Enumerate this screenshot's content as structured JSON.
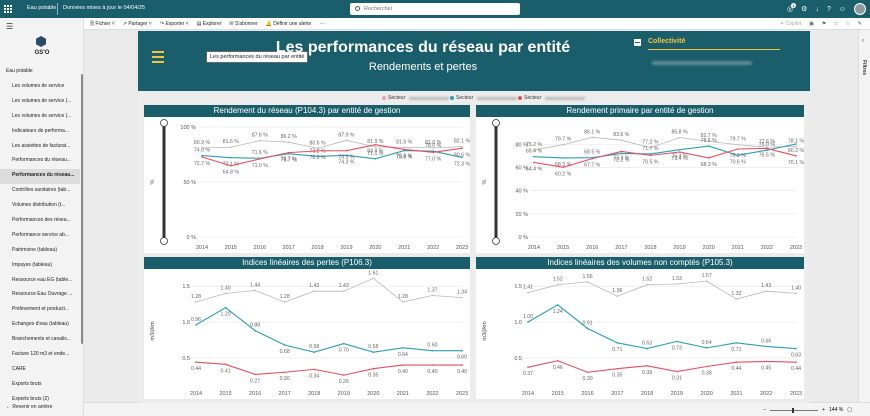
{
  "topbar": {
    "app_name": "Eau potable",
    "dataset_info": "Données mises à jour le 04/04/25",
    "search_placeholder": "Rechercher",
    "notif_count": "1"
  },
  "toolbar": {
    "file": "Fichier",
    "share": "Partager",
    "export": "Exporter",
    "explore": "Explorer",
    "subscribe": "S'abonner",
    "alert": "Définir une alerte",
    "more": "···",
    "copilot": "Copilot"
  },
  "sidebar": {
    "org": "GS'O",
    "group": "Eau potable",
    "items": [
      "Les volumes de service",
      "Les volumes de service (...",
      "Les volumes de service (...",
      "Indicateurs de performa...",
      "Les assiettes de facturat...",
      "Performances du réseau...",
      "Performances du réseau...",
      "Contrôles sanitaires (tab...",
      "Volumes distribution (t...",
      "Performances des résea...",
      "Performance service ab...",
      "Patrimoine (tableau)",
      "Impayes (tableau)",
      "Ressource eau EG (table...",
      "Ressource Eau Ouvrage ...",
      "Prélèvement et producti...",
      "Echanges d'eau (tableau)",
      "Branchements et canalis...",
      "Facture 120 m3 et ende...",
      "CARE",
      "Exports bruts",
      "Exports bruts (2)"
    ],
    "back": "Revenir en arrière"
  },
  "rightpane": {
    "label": "Filtres"
  },
  "status": {
    "zoom": "144 %"
  },
  "report": {
    "title": "Les performances du réseau par entité",
    "subtitle": "Rendements et pertes",
    "tooltip": "Les performances du réseau par entité",
    "slicer_label": "Collectivité",
    "legend": [
      {
        "label": "Secteur",
        "color": "#e8a0b4"
      },
      {
        "label": "Secteur",
        "color": "#2e9db0"
      },
      {
        "label": "Secteur",
        "color": "#e05060"
      }
    ]
  },
  "colors": {
    "series_a": "#b8b8b8",
    "series_b": "#2e9db0",
    "series_c": "#e05060"
  },
  "chart_data": [
    {
      "type": "line",
      "title": "Rendement du réseau (P104.3) par entité de gestion",
      "ylabel": "%",
      "yticks": [
        "100 %",
        "50 %",
        "0 %"
      ],
      "ylim": [
        0,
        100
      ],
      "slider": true,
      "x": [
        "2014",
        "2015",
        "2016",
        "2017",
        "2018",
        "2019",
        "2020",
        "2021",
        "2022",
        "2023"
      ],
      "series": [
        {
          "name": "A",
          "values": [
            80.9,
            81.6,
            87.6,
            86.2,
            80.6,
            87.9,
            81.9,
            81.5,
            81.0,
            82.1
          ]
        },
        {
          "name": "B",
          "values": [
            74.0,
            72.1,
            71.6,
            75.7,
            73.2,
            74.3,
            71.1,
            78.6,
            78.0,
            72.3
          ]
        },
        {
          "name": "C",
          "values": [
            72.7,
            64.8,
            71.0,
            76.7,
            78.3,
            78.5,
            83.9,
            79.6,
            77.0,
            80.6
          ]
        }
      ],
      "labels": [
        [
          "80.9 %",
          "81.6 %",
          "87.6 %",
          "86.2 %",
          "80.6 %",
          "87.9 %",
          "81.9 %",
          "81.5 %",
          "81.0 %",
          "82.1 %"
        ],
        [
          "74.0 %",
          "72.1 %",
          "71.6 %",
          "75.7 %",
          "73.2 %",
          "74.3 %",
          "71.1 %",
          "78.6 %",
          "78.0 %",
          "72.3 %"
        ],
        [
          "72.7 %",
          "64.8 %",
          "71.0 %",
          "76.7 %",
          "78.3 %",
          "78.5 %",
          "83.9 %",
          "79.6 %",
          "77.0 %",
          "80.6 %"
        ]
      ]
    },
    {
      "type": "line",
      "title": "Rendement primaire par entité de gestion",
      "ylabel": "%",
      "yticks": [
        "80 %",
        "60 %",
        "40 %",
        "20 %",
        "0 %"
      ],
      "ylim": [
        0,
        95
      ],
      "slider": true,
      "x": [
        "2014",
        "2015",
        "2016",
        "2017",
        "2018",
        "2019",
        "2020",
        "2021",
        "2022",
        "2023"
      ],
      "series": [
        {
          "name": "A",
          "values": [
            75.2,
            79.7,
            86.1,
            83.6,
            77.2,
            85.8,
            82.7,
            79.7,
            77.6,
            78.1
          ]
        },
        {
          "name": "B",
          "values": [
            69.4,
            68.3,
            68.5,
            72.2,
            71.7,
            75.4,
            78.5,
            70.6,
            75.0,
            80.3
          ]
        },
        {
          "name": "C",
          "values": [
            64.4,
            60.2,
            67.7,
            73.9,
            70.5,
            73.4,
            68.3,
            76.0,
            76.5,
            70.1
          ]
        }
      ],
      "labels": [
        [
          "75.2 %",
          "79.7 %",
          "86.1 %",
          "83.6 %",
          "77.2 %",
          "85.8 %",
          "82.7 %",
          "79.7 %",
          "77.6 %",
          "78.1 %"
        ],
        [
          "69.4 %",
          "68.3 %",
          "68.5 %",
          "72.2 %",
          "71.7 %",
          "75.4 %",
          "78.5 %",
          "70.6 %",
          "75.0 %",
          "80.3 %"
        ],
        [
          "64.4 %",
          "60.2 %",
          "67.7 %",
          "73.9 %",
          "70.5 %",
          "73.4 %",
          "68.3 %",
          "76.0 %",
          "76.5 %",
          "70.1 %"
        ]
      ]
    },
    {
      "type": "line",
      "title": "Indices linéaires des pertes (P106.3)",
      "ylabel": "m3/j/km",
      "yticks": [
        "1.5",
        "1.0",
        "0.5"
      ],
      "ylim": [
        0.15,
        1.6
      ],
      "slider": false,
      "x": [
        "2014",
        "2015",
        "2016",
        "2017",
        "2018",
        "2019",
        "2020",
        "2021",
        "2022",
        "2023"
      ],
      "series": [
        {
          "name": "A",
          "values": [
            1.28,
            1.4,
            1.44,
            1.28,
            1.43,
            1.43,
            1.61,
            1.28,
            1.37,
            1.34
          ]
        },
        {
          "name": "B",
          "values": [
            0.96,
            1.2,
            0.88,
            0.68,
            0.58,
            0.7,
            0.58,
            0.64,
            0.6,
            0.6
          ]
        },
        {
          "name": "C",
          "values": [
            0.44,
            0.41,
            0.27,
            0.3,
            0.34,
            0.26,
            0.35,
            0.4,
            0.4,
            0.4
          ]
        }
      ],
      "labels": [
        [
          "1.28",
          "1.40",
          "1.44",
          "1.28",
          "1.43",
          "1.43",
          "1.61",
          "1.28",
          "1.37",
          "1.34"
        ],
        [
          "0.96",
          "1.20",
          "0.88",
          "0.68",
          "0.58",
          "0.70",
          "0.58",
          "0.64",
          "0.60",
          "0.60"
        ],
        [
          "0.44",
          "0.41",
          "0.27",
          "0.30",
          "0.34",
          "0.26",
          "0.35",
          "0.40",
          "0.40",
          "0.40"
        ]
      ]
    },
    {
      "type": "line",
      "title": "Indices linéaires des volumes non comptés (P105.3)",
      "ylabel": "m3/j/km",
      "yticks": [
        "1.5",
        "1.0",
        "0.5"
      ],
      "ylim": [
        0.15,
        1.6
      ],
      "slider": false,
      "x": [
        "2014",
        "2015",
        "2016",
        "2017",
        "2018",
        "2019",
        "2020",
        "2021",
        "2022",
        "2023"
      ],
      "series": [
        {
          "name": "A",
          "values": [
            1.41,
            1.52,
            1.56,
            1.36,
            1.52,
            1.53,
            1.57,
            1.32,
            1.43,
            1.4
          ]
        },
        {
          "name": "B",
          "values": [
            1.0,
            1.24,
            0.91,
            0.71,
            0.63,
            0.73,
            0.64,
            0.71,
            0.66,
            0.63
          ]
        },
        {
          "name": "C",
          "values": [
            0.37,
            0.46,
            0.3,
            0.35,
            0.39,
            0.31,
            0.38,
            0.44,
            0.45,
            0.44
          ]
        }
      ],
      "labels": [
        [
          "1.41",
          "1.52",
          "1.56",
          "1.36",
          "1.52",
          "1.53",
          "1.57",
          "1.32",
          "1.43",
          "1.40"
        ],
        [
          "1.00",
          "1.24",
          "0.91",
          "0.71",
          "0.63",
          "0.73",
          "0.64",
          "0.71",
          "0.66",
          "0.63"
        ],
        [
          "0.37",
          "0.46",
          "0.30",
          "0.35",
          "0.39",
          "0.31",
          "0.38",
          "0.44",
          "0.45",
          "0.44"
        ]
      ]
    }
  ]
}
